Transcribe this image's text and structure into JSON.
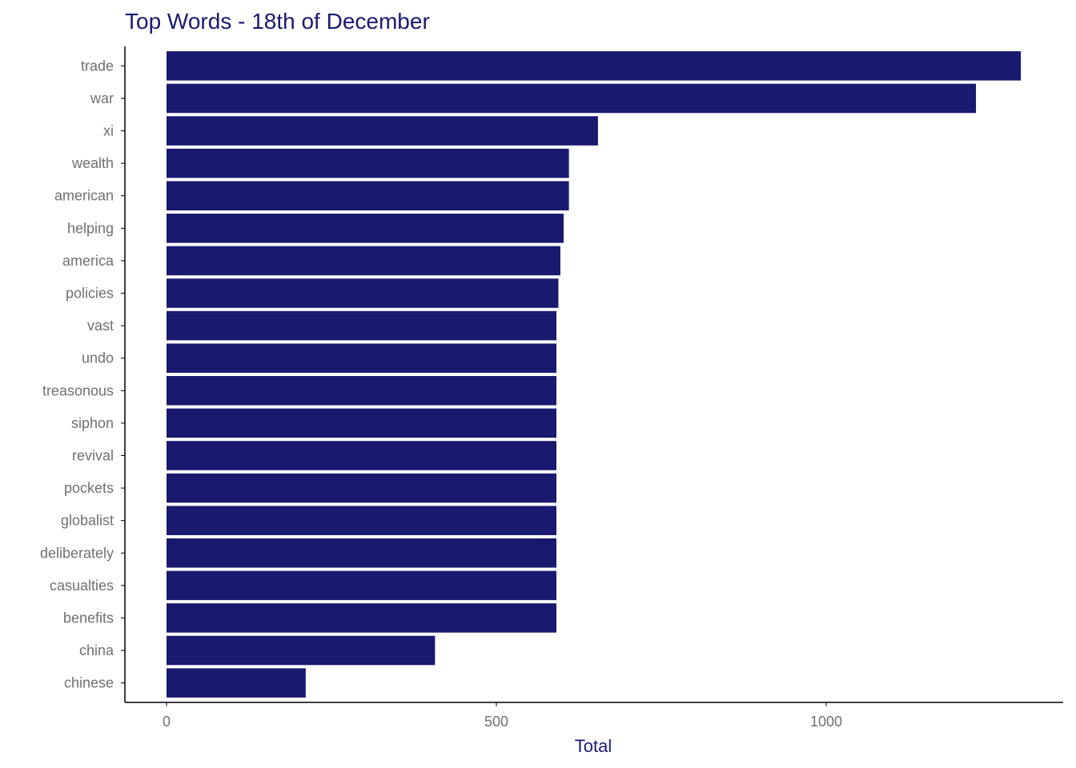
{
  "chart_data": {
    "type": "bar",
    "orientation": "horizontal",
    "title": "Top Words - 18th of December",
    "xlabel": "Total",
    "ylabel": "",
    "categories": [
      "trade",
      "war",
      "xi",
      "wealth",
      "american",
      "helping",
      "america",
      "policies",
      "vast",
      "undo",
      "treasonous",
      "siphon",
      "revival",
      "pockets",
      "globalist",
      "deliberately",
      "casualties",
      "benefits",
      "china",
      "chinese"
    ],
    "values": [
      1295,
      1227,
      654,
      610,
      610,
      602,
      597,
      594,
      591,
      591,
      591,
      591,
      591,
      591,
      591,
      591,
      591,
      591,
      407,
      211
    ],
    "xlim": [
      -62,
      1357
    ],
    "xticks": [
      0,
      500,
      1000
    ],
    "xtick_labels": [
      "0",
      "500",
      "1000"
    ],
    "grid": false,
    "legend": "none",
    "colors": {
      "bar": "#191970",
      "title": "#191970",
      "axis_title": "#191970",
      "tick_label": "#707070",
      "axis_line": "#000000"
    }
  }
}
